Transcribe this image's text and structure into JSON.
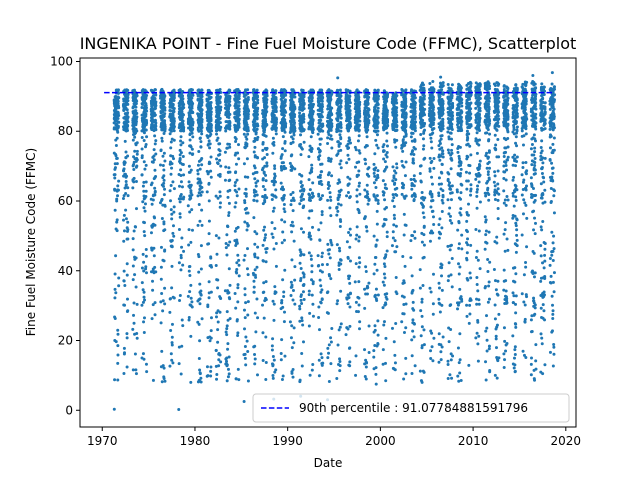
{
  "chart_data": {
    "type": "scatter",
    "title": "INGENIKA POINT - Fine Fuel Moisture Code (FFMC), Scatterplot",
    "xlabel": "Date",
    "ylabel": "Fine Fuel Moisture Code (FFMC)",
    "xlim": [
      1967.6,
      2021.1
    ],
    "ylim": [
      -4.8,
      101.0
    ],
    "x_ticks": [
      1970,
      1980,
      1990,
      2000,
      2010,
      2020
    ],
    "y_ticks": [
      0,
      20,
      40,
      60,
      80,
      100
    ],
    "grid": false,
    "legend_position": "lower-right",
    "season": {
      "first_year": 1971,
      "last_year": 2018,
      "start_fraction": 0.28,
      "end_fraction": 0.79
    },
    "series": [
      {
        "name": "",
        "kind": "scatter",
        "color": "#1f77b4",
        "points": [
          [
            1971.3,
            0.3
          ],
          [
            1978.25,
            0.2
          ],
          [
            1972.4,
            16.5
          ],
          [
            1977.45,
            16.2
          ],
          [
            1979.55,
            8.0
          ],
          [
            1985.3,
            2.5
          ],
          [
            1988.5,
            3.2
          ],
          [
            1991.4,
            4.0
          ],
          [
            1994.3,
            3.0
          ],
          [
            1999.55,
            7.5
          ],
          [
            2001.4,
            12.0
          ],
          [
            2004.5,
            8.0
          ],
          [
            2008.6,
            14.5
          ],
          [
            2012.4,
            10.0
          ],
          [
            2013.5,
            17.0
          ],
          [
            2016.3,
            15.0
          ],
          [
            2017.5,
            10.5
          ],
          [
            2018.6,
            27.5
          ],
          [
            1995.4,
            95.3
          ],
          [
            2006.5,
            95.5
          ],
          [
            2016.45,
            96.0
          ],
          [
            2018.55,
            96.8
          ]
        ]
      },
      {
        "name": "90th percentile : 91.07784881591796",
        "kind": "line",
        "style": "dashed",
        "color": "#0000ff",
        "x": [
          1970.2,
          2018.7
        ],
        "y": [
          91.07784881591796,
          91.07784881591796
        ]
      }
    ]
  }
}
